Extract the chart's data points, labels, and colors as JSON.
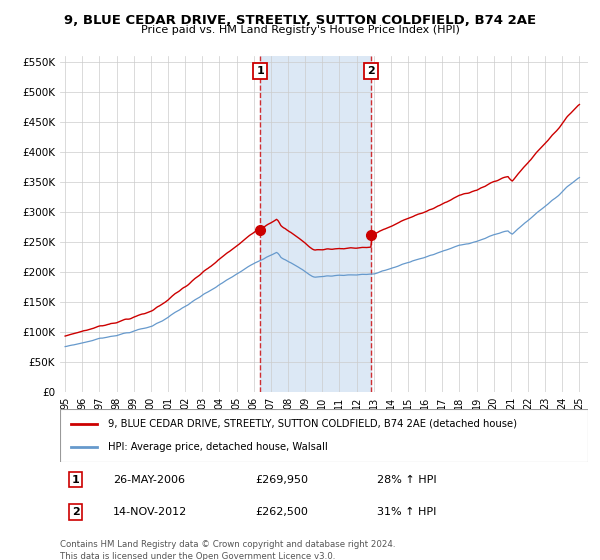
{
  "title": "9, BLUE CEDAR DRIVE, STREETLY, SUTTON COLDFIELD, B74 2AE",
  "subtitle": "Price paid vs. HM Land Registry's House Price Index (HPI)",
  "ylim": [
    0,
    560000
  ],
  "yticks": [
    0,
    50000,
    100000,
    150000,
    200000,
    250000,
    300000,
    350000,
    400000,
    450000,
    500000,
    550000
  ],
  "ytick_labels": [
    "£0",
    "£50K",
    "£100K",
    "£150K",
    "£200K",
    "£250K",
    "£300K",
    "£350K",
    "£400K",
    "£450K",
    "£500K",
    "£550K"
  ],
  "legend_line1": "9, BLUE CEDAR DRIVE, STREETLY, SUTTON COLDFIELD, B74 2AE (detached house)",
  "legend_line2": "HPI: Average price, detached house, Walsall",
  "red_color": "#cc0000",
  "blue_color": "#6699cc",
  "annotation1_date": "26-MAY-2006",
  "annotation1_price": "£269,950",
  "annotation1_hpi": "28% ↑ HPI",
  "annotation2_date": "14-NOV-2012",
  "annotation2_price": "£262,500",
  "annotation2_hpi": "31% ↑ HPI",
  "footnote1": "Contains HM Land Registry data © Crown copyright and database right 2024.",
  "footnote2": "This data is licensed under the Open Government Licence v3.0.",
  "shaded_x_start": 2006.38,
  "shaded_x_end": 2012.87,
  "vline1_x": 2006.38,
  "vline2_x": 2012.87,
  "marker1_x": 2006.38,
  "marker1_y": 269950,
  "marker2_x": 2012.87,
  "marker2_y": 262500,
  "shaded_color": "#dce8f5",
  "grid_color": "#cccccc",
  "xlim_left": 1994.7,
  "xlim_right": 2025.5
}
